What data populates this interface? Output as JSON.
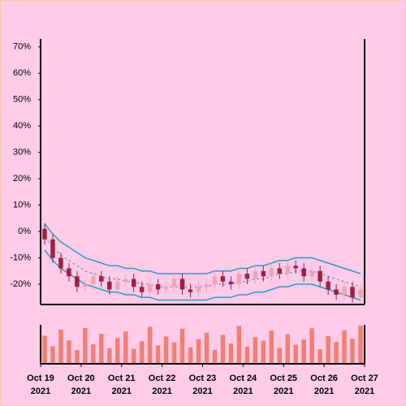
{
  "chart_data": {
    "type": "candlestick",
    "xlim": [
      0,
      8
    ],
    "xticks": [
      {
        "value": 0,
        "label": "Oct 19",
        "sublabel": "2021"
      },
      {
        "value": 1,
        "label": "Oct 20",
        "sublabel": "2021"
      },
      {
        "value": 2,
        "label": "Oct 21",
        "sublabel": "2021"
      },
      {
        "value": 3,
        "label": "Oct 22",
        "sublabel": "2021"
      },
      {
        "value": 4,
        "label": "Oct 23",
        "sublabel": "2021"
      },
      {
        "value": 5,
        "label": "Oct 24",
        "sublabel": "2021"
      },
      {
        "value": 6,
        "label": "Oct 25",
        "sublabel": "2021"
      },
      {
        "value": 7,
        "label": "Oct 26",
        "sublabel": "2021"
      },
      {
        "value": 8,
        "label": "Oct 27",
        "sublabel": "2021"
      }
    ],
    "ylim": [
      -27.7,
      73
    ],
    "yticks": [
      {
        "value": -20,
        "label": "-20%"
      },
      {
        "value": -10,
        "label": "-10%"
      },
      {
        "value": 0,
        "label": "0%"
      },
      {
        "value": 10,
        "label": "10%"
      },
      {
        "value": 20,
        "label": "20%"
      },
      {
        "value": 30,
        "label": "30%"
      },
      {
        "value": 40,
        "label": "40%"
      },
      {
        "value": 50,
        "label": "50%"
      },
      {
        "value": 60,
        "label": "60%"
      },
      {
        "value": 70,
        "label": "70%"
      }
    ],
    "x": [
      0.1,
      0.3,
      0.5,
      0.7,
      0.9,
      1.1,
      1.3,
      1.5,
      1.7,
      1.9,
      2.1,
      2.3,
      2.5,
      2.7,
      2.9,
      3.1,
      3.3,
      3.5,
      3.7,
      3.9,
      4.1,
      4.3,
      4.5,
      4.7,
      4.9,
      5.1,
      5.3,
      5.5,
      5.7,
      5.9,
      6.1,
      6.3,
      6.5,
      6.7,
      6.9,
      7.1,
      7.3,
      7.5,
      7.7,
      7.9
    ],
    "open": [
      1,
      -3,
      -10,
      -14,
      -17,
      -21,
      -20,
      -17,
      -19,
      -22,
      -19,
      -18,
      -21,
      -23,
      -20,
      -22,
      -21,
      -18,
      -22,
      -23,
      -21,
      -20,
      -17,
      -19,
      -20,
      -16,
      -18,
      -15,
      -17,
      -14,
      -16,
      -13,
      -14,
      -17,
      -15,
      -19,
      -22,
      -24,
      -21,
      -25
    ],
    "high": [
      3,
      -1,
      -8,
      -12,
      -15,
      -18,
      -15,
      -15,
      -17,
      -17,
      -16,
      -16,
      -19,
      -18,
      -18,
      -19,
      -16,
      -16,
      -20,
      -19,
      -18,
      -15,
      -15,
      -17,
      -14,
      -14,
      -13,
      -13,
      -12,
      -12,
      -11,
      -11,
      -12,
      -13,
      -13,
      -17,
      -20,
      -19,
      -19,
      -20
    ],
    "low": [
      -5,
      -12,
      -16,
      -19,
      -23,
      -23,
      -22,
      -21,
      -24,
      -24,
      -21,
      -23,
      -25,
      -25,
      -24,
      -24,
      -23,
      -24,
      -25,
      -25,
      -23,
      -22,
      -21,
      -22,
      -22,
      -20,
      -20,
      -19,
      -19,
      -18,
      -18,
      -16,
      -19,
      -19,
      -21,
      -24,
      -26,
      -26,
      -27,
      -27
    ],
    "close": [
      -3,
      -10,
      -14,
      -17,
      -21,
      -20,
      -17,
      -19,
      -22,
      -19,
      -18,
      -21,
      -23,
      -20,
      -22,
      -21,
      -18,
      -22,
      -23,
      -21,
      -20,
      -17,
      -19,
      -20,
      -16,
      -18,
      -15,
      -17,
      -14,
      -16,
      -13,
      -14,
      -17,
      -15,
      -19,
      -22,
      -24,
      -21,
      -25,
      -22
    ],
    "up_color": "#f2a3b3",
    "down_color": "#9e1f45",
    "bands": {
      "color": "#2a9fc4",
      "upper": [
        3,
        -1,
        -4,
        -6,
        -8,
        -10,
        -11,
        -12,
        -13,
        -13,
        -14,
        -14,
        -15,
        -15,
        -16,
        -16,
        -16,
        -16,
        -16,
        -16,
        -16,
        -15,
        -15,
        -15,
        -14,
        -14,
        -13,
        -13,
        -12,
        -11,
        -11,
        -10,
        -10,
        -10,
        -11,
        -12,
        -13,
        -14,
        -15,
        -16
      ],
      "middle": [
        -2,
        -6,
        -9,
        -11,
        -13,
        -15,
        -16,
        -17,
        -18,
        -18,
        -19,
        -19,
        -20,
        -20,
        -21,
        -21,
        -21,
        -21,
        -21,
        -21,
        -21,
        -20,
        -20,
        -20,
        -19,
        -19,
        -18,
        -18,
        -17,
        -16,
        -16,
        -15,
        -15,
        -15,
        -16,
        -17,
        -18,
        -19,
        -20,
        -21
      ],
      "lower": [
        -7,
        -11,
        -14,
        -16,
        -18,
        -20,
        -21,
        -22,
        -23,
        -23,
        -24,
        -24,
        -25,
        -25,
        -26,
        -26,
        -26,
        -26,
        -26,
        -26,
        -26,
        -25,
        -25,
        -25,
        -24,
        -24,
        -23,
        -23,
        -22,
        -21,
        -21,
        -20,
        -20,
        -20,
        -21,
        -22,
        -23,
        -24,
        -25,
        -26
      ]
    },
    "volume": {
      "color": "#f08072",
      "ylim": [
        0,
        100
      ],
      "values": [
        72,
        45,
        88,
        60,
        35,
        92,
        50,
        77,
        40,
        66,
        83,
        38,
        58,
        95,
        47,
        70,
        55,
        90,
        42,
        63,
        80,
        36,
        74,
        52,
        97,
        44,
        68,
        59,
        85,
        41,
        76,
        49,
        62,
        91,
        37,
        71,
        56,
        86,
        64,
        98
      ]
    }
  }
}
